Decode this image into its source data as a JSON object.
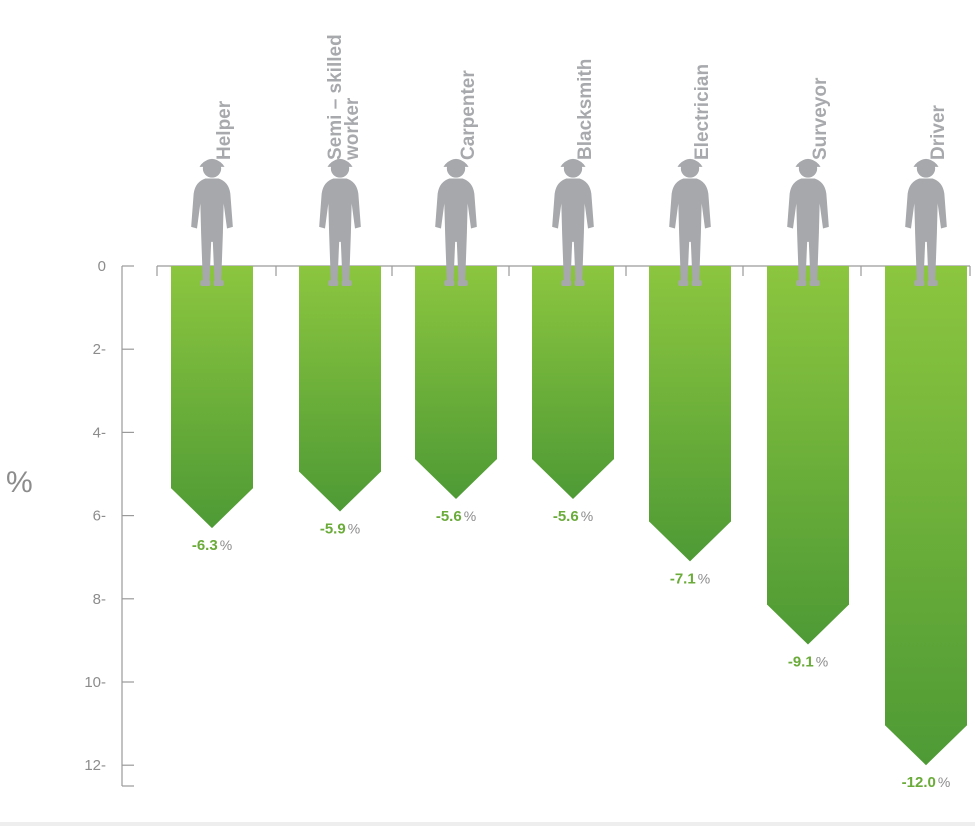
{
  "chart_data": {
    "type": "bar",
    "orientation": "downward",
    "categories": [
      "Helper",
      "Semi – skilled worker",
      "Carpenter",
      "Blacksmith",
      "Electrician",
      "Surveyor",
      "Driver"
    ],
    "category_lines": [
      [
        "Helper"
      ],
      [
        "Semi – skilled",
        "worker"
      ],
      [
        "Carpenter"
      ],
      [
        "Blacksmith"
      ],
      [
        "Electrician"
      ],
      [
        "Surveyor"
      ],
      [
        "Driver"
      ]
    ],
    "values": [
      -6.3,
      -5.9,
      -5.6,
      -5.6,
      -7.1,
      -9.1,
      -12.0
    ],
    "value_labels": [
      "-6.3",
      "-5.9",
      "-5.6",
      "-5.6",
      "-7.1",
      "-9.1",
      "-12.0"
    ],
    "value_suffix": "%",
    "ylabel": "%",
    "y_ticks": [
      "0",
      "2-",
      "4-",
      "6-",
      "8-",
      "10-",
      "12-"
    ],
    "y_tick_values": [
      0,
      2,
      4,
      6,
      8,
      10,
      12
    ],
    "ylim": [
      0,
      12.5
    ],
    "grid": false,
    "colors": {
      "bar_top": "#8cc63f",
      "bar_bottom": "#4e9a35",
      "value_number": "#6aab3a",
      "value_suffix": "#8c8c8c",
      "category_text": "#a7a9ac",
      "silhouette": "#a6a8ab",
      "axis": "#9a9a9a",
      "tick_text": "#8c8c8c"
    },
    "icons": [
      "helper-silhouette-icon",
      "semi-skilled-worker-silhouette-icon",
      "carpenter-silhouette-icon",
      "blacksmith-silhouette-icon",
      "electrician-silhouette-icon",
      "surveyor-silhouette-icon",
      "driver-silhouette-icon"
    ]
  }
}
